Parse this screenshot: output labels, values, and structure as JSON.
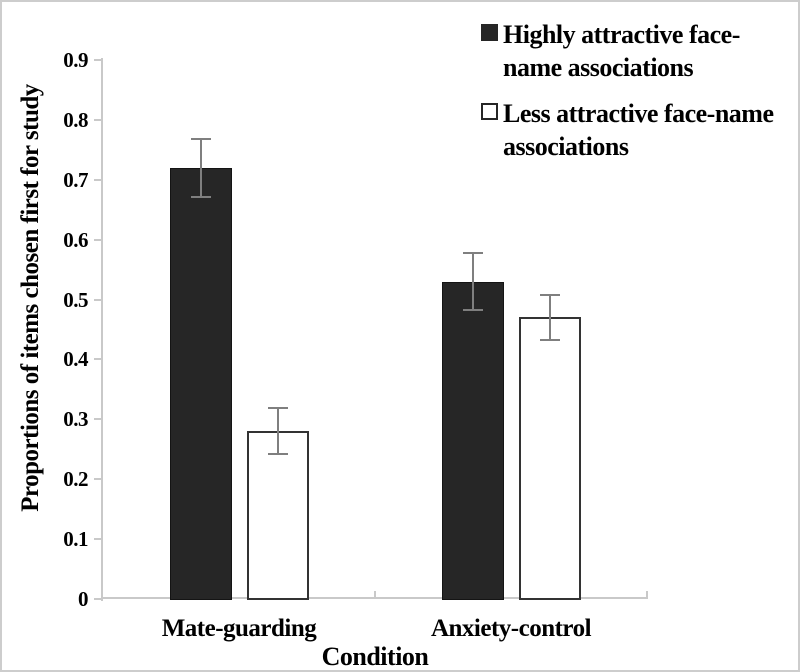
{
  "chart_data": {
    "type": "bar",
    "title": "",
    "xlabel": "Condition",
    "ylabel": "Proportions of items chosen first for study",
    "categories": [
      "Mate-guarding",
      "Anxiety-control"
    ],
    "series": [
      {
        "name": "Highly attractive face-name associations",
        "key": "highly-attractive",
        "style": "filled",
        "values": [
          0.72,
          0.53
        ],
        "errors": [
          0.05,
          0.05
        ]
      },
      {
        "name": "Less attractive face-name associations",
        "key": "less-attractive",
        "style": "open",
        "values": [
          0.28,
          0.47
        ],
        "errors": [
          0.04,
          0.04
        ]
      }
    ],
    "ylim": [
      0,
      0.9
    ],
    "yticks": [
      "0",
      "0.1",
      "0.2",
      "0.3",
      "0.4",
      "0.5",
      "0.6",
      "0.7",
      "0.8",
      "0.9"
    ],
    "grid": false,
    "legend_position": "top-right",
    "colors": {
      "bar_fill_dark": "#262626",
      "bar_fill_light": "#ffffff",
      "bar_border": "#333333",
      "error_bar": "#7f7f7f",
      "axis_line": "#c9c9c9",
      "text": "#000000"
    }
  }
}
